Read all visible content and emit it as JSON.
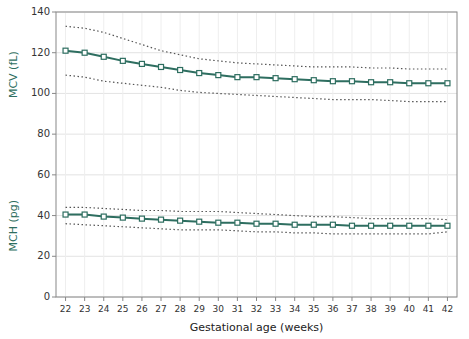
{
  "chart_data": {
    "type": "line",
    "xlabel": "Gestational age (weeks)",
    "ylabel": [
      "MCV (fL)",
      "MCH (pg)"
    ],
    "x": [
      22,
      23,
      24,
      25,
      26,
      27,
      28,
      29,
      30,
      31,
      32,
      33,
      34,
      35,
      36,
      37,
      38,
      39,
      40,
      41,
      42
    ],
    "series": [
      {
        "color": "#2e6e60",
        "line_style": "solid",
        "marker": "square",
        "values": [
          121,
          120,
          118,
          116,
          114.5,
          113,
          111.5,
          110,
          109,
          108,
          108,
          107.5,
          107,
          106.5,
          106,
          106,
          105.5,
          105.5,
          105,
          105,
          105
        ]
      },
      {
        "color": "#555555",
        "line_style": "dotted",
        "values": [
          133,
          132,
          130,
          127,
          124,
          121,
          119,
          117,
          116,
          115,
          114.5,
          114,
          113.5,
          113,
          113,
          113,
          112.5,
          112.5,
          112,
          112,
          112
        ]
      },
      {
        "color": "#555555",
        "line_style": "dotted",
        "values": [
          109,
          108,
          106,
          105,
          104,
          103,
          101.5,
          100.5,
          100,
          99.5,
          99,
          98.5,
          98,
          97.5,
          97,
          97,
          97,
          96.5,
          96,
          96,
          96
        ]
      },
      {
        "color": "#2e6e60",
        "line_style": "solid",
        "marker": "square",
        "values": [
          40.5,
          40.5,
          39.5,
          39,
          38.5,
          38,
          37.5,
          37,
          36.5,
          36.5,
          36,
          36,
          35.5,
          35.5,
          35.5,
          35,
          35,
          35,
          35,
          35,
          35
        ]
      },
      {
        "color": "#555555",
        "line_style": "dotted",
        "values": [
          44,
          44,
          43.5,
          43,
          42.5,
          42.5,
          42,
          42,
          42,
          41.5,
          41,
          40.5,
          40,
          39.5,
          39.5,
          39,
          38.5,
          38.5,
          38.5,
          38.5,
          38
        ]
      },
      {
        "color": "#555555",
        "line_style": "dotted",
        "values": [
          36,
          35.5,
          35,
          34.5,
          34,
          33.5,
          33,
          33,
          33,
          32.5,
          32,
          32,
          31.5,
          31.5,
          31,
          31,
          31,
          31,
          31,
          31,
          32
        ]
      }
    ],
    "xlim": [
      21.5,
      42.5
    ],
    "xticks": [
      22,
      23,
      24,
      25,
      26,
      27,
      28,
      29,
      30,
      31,
      32,
      33,
      34,
      35,
      36,
      37,
      38,
      39,
      40,
      41,
      42
    ],
    "ylim": [
      0,
      140
    ],
    "yticks": [
      0,
      20,
      40,
      60,
      80,
      100,
      120,
      140
    ],
    "grid": true
  }
}
